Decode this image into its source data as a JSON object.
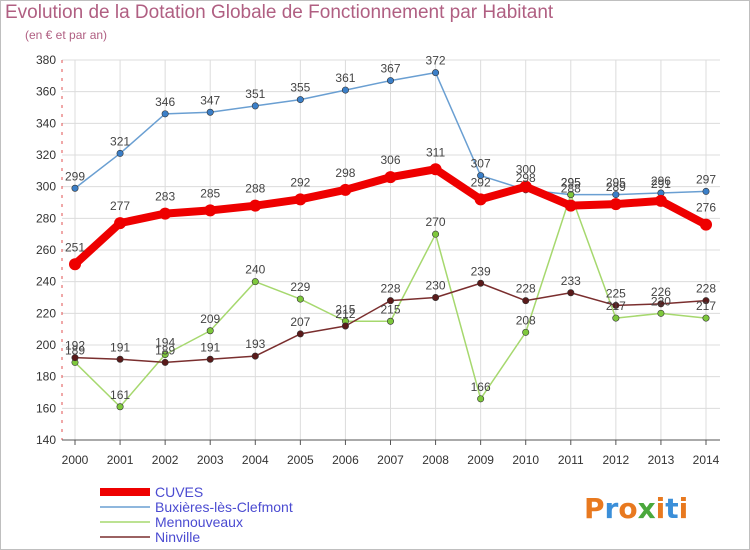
{
  "title": "Evolution de la Dotation Globale de Fonctionnement par Habitant",
  "subtitle": "(en € et par an)",
  "logo": {
    "text": "Proxiti",
    "colors": [
      "#e8791f",
      "#3b8fd9",
      "#e8791f",
      "#4aa83c",
      "#e8791f",
      "#3b8fd9",
      "#e8791f"
    ]
  },
  "chart_data": {
    "type": "line",
    "x": [
      "2000",
      "2001",
      "2002",
      "2003",
      "2004",
      "2005",
      "2006",
      "2007",
      "2008",
      "2009",
      "2010",
      "2011",
      "2012",
      "2013",
      "2014"
    ],
    "ylim": [
      140,
      380
    ],
    "yticks": [
      140,
      160,
      180,
      200,
      220,
      240,
      260,
      280,
      300,
      320,
      340,
      360,
      380
    ],
    "grid": true,
    "legend_position": "bottom-left",
    "series": [
      {
        "name": "Buxières-lès-Clefmont",
        "color": "#6a9fd2",
        "point_color": "#3b7fc8",
        "values": [
          299,
          321,
          346,
          347,
          351,
          355,
          361,
          367,
          372,
          307,
          298,
          295,
          295,
          296,
          297
        ]
      },
      {
        "name": "Mennouveaux",
        "color": "#a6d86e",
        "point_color": "#7ec83c",
        "values": [
          189,
          161,
          194,
          209,
          240,
          229,
          215,
          215,
          270,
          166,
          208,
          295,
          217,
          220,
          217
        ]
      },
      {
        "name": "Ninville",
        "color": "#7a2e2e",
        "point_color": "#5a1a1a",
        "values": [
          192,
          191,
          189,
          191,
          193,
          207,
          212,
          228,
          230,
          239,
          228,
          233,
          225,
          226,
          228
        ]
      },
      {
        "name": "CUVES",
        "color": "#ee0000",
        "point_color": "#ee0000",
        "values": [
          251,
          277,
          283,
          285,
          288,
          292,
          298,
          306,
          311,
          292,
          300,
          288,
          289,
          291,
          276
        ]
      }
    ]
  }
}
